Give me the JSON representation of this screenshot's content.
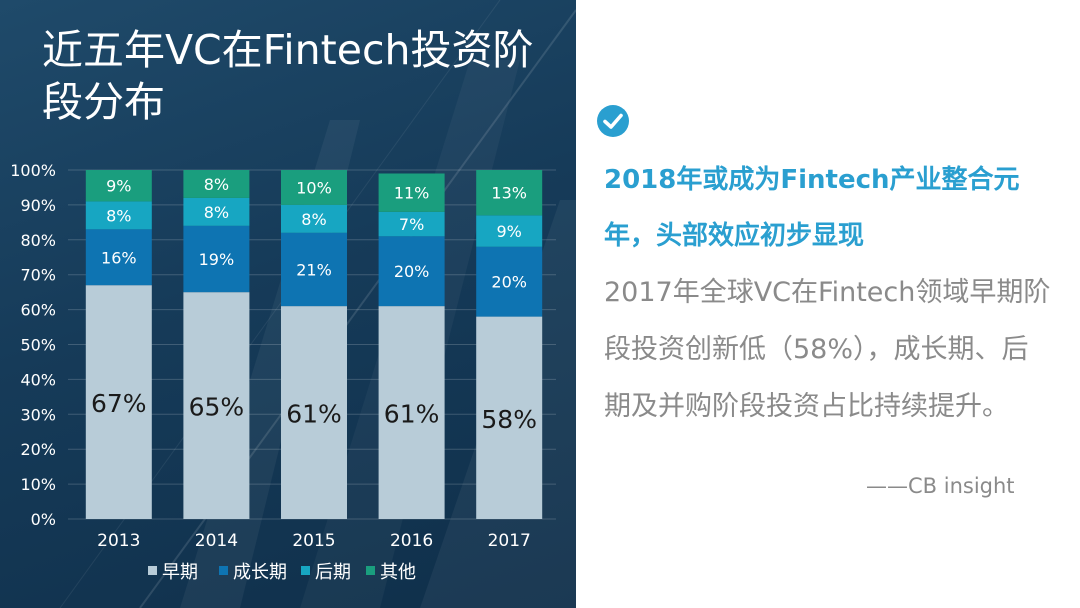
{
  "title": "近五年VC在Fintech投资阶段分布",
  "headline": "2018年或成为Fintech产业整合元年，头部效应初步显现",
  "body_text": "2017年全球VC在Fintech领域早期阶段投资创新低（58%），成长期、后期及并购阶段投资占比持续提升。",
  "source": "——CB insight",
  "icons": [
    "check-circle-icon"
  ],
  "colors": {
    "early": "#b8ccd8",
    "growth": "#0e74b2",
    "late": "#17a6c2",
    "other": "#1a9e7e",
    "headline": "#2a9fd0"
  },
  "chart_data": {
    "type": "bar",
    "stacked": true,
    "categories": [
      "2013",
      "2014",
      "2015",
      "2016",
      "2017"
    ],
    "series": [
      {
        "name": "早期",
        "values": [
          67,
          65,
          61,
          61,
          58
        ]
      },
      {
        "name": "成长期",
        "values": [
          16,
          19,
          21,
          20,
          20
        ]
      },
      {
        "name": "后期",
        "values": [
          8,
          8,
          8,
          7,
          9
        ]
      },
      {
        "name": "其他",
        "values": [
          9,
          8,
          10,
          11,
          13
        ]
      }
    ],
    "value_labels": [
      [
        "67%",
        "65%",
        "61%",
        "61%",
        "58%"
      ],
      [
        "16%",
        "19%",
        "21%",
        "20%",
        "20%"
      ],
      [
        "8%",
        "8%",
        "8%",
        "7%",
        "9%"
      ],
      [
        "9%",
        "8%",
        "10%",
        "11%",
        "13%"
      ]
    ],
    "y_ticks": [
      "0%",
      "10%",
      "20%",
      "30%",
      "40%",
      "50%",
      "60%",
      "70%",
      "80%",
      "90%",
      "100%"
    ],
    "ylim": [
      0,
      100
    ],
    "grid": true,
    "legend_position": "bottom"
  }
}
